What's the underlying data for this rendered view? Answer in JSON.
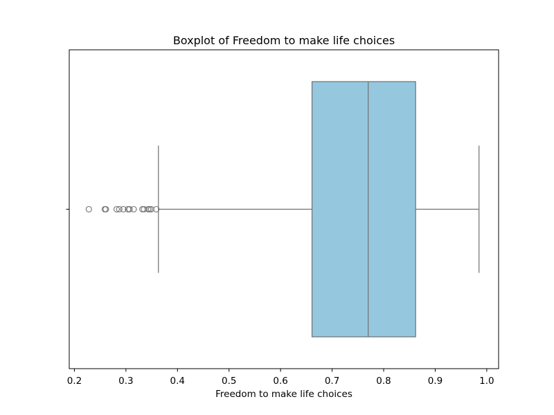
{
  "chart_data": {
    "type": "boxplot",
    "title": "Boxplot of Freedom to make life choices",
    "xlabel": "Freedom to make life choices",
    "ylabel": "",
    "orientation": "horizontal",
    "xlim": [
      0.19,
      1.023
    ],
    "xticks": [
      0.2,
      0.3,
      0.4,
      0.5,
      0.6,
      0.7,
      0.8,
      0.9,
      1.0
    ],
    "xtick_labels": [
      "0.2",
      "0.3",
      "0.4",
      "0.5",
      "0.6",
      "0.7",
      "0.8",
      "0.9",
      "1.0"
    ],
    "grid": false,
    "box": {
      "q1": 0.661,
      "median": 0.77,
      "q3": 0.862,
      "whisker_low": 0.363,
      "whisker_high": 0.985
    },
    "outliers": [
      0.228,
      0.259,
      0.261,
      0.282,
      0.287,
      0.295,
      0.304,
      0.307,
      0.315,
      0.332,
      0.335,
      0.343,
      0.346,
      0.349,
      0.359
    ],
    "colors": {
      "box_fill": "#95c8df",
      "line": "#6f6f6f",
      "axes": "#000000"
    }
  }
}
